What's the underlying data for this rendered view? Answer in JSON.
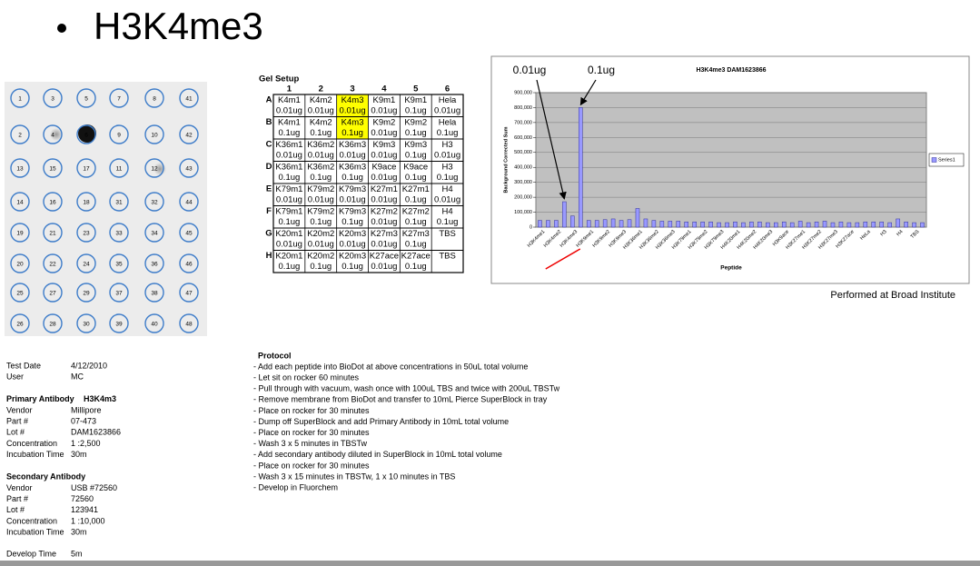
{
  "title": "H3K4me3",
  "blot": {
    "rows": [
      [
        "1",
        "3",
        "5",
        "7",
        "8",
        "41"
      ],
      [
        "2",
        "4",
        "6",
        "9",
        "10",
        "42"
      ],
      [
        "13",
        "15",
        "17",
        "11",
        "12",
        "43"
      ],
      [
        "14",
        "16",
        "18",
        "31",
        "32",
        "44"
      ],
      [
        "19",
        "21",
        "23",
        "33",
        "34",
        "45"
      ],
      [
        "20",
        "22",
        "24",
        "35",
        "36",
        "46"
      ],
      [
        "25",
        "27",
        "29",
        "37",
        "38",
        "47"
      ],
      [
        "26",
        "28",
        "30",
        "39",
        "40",
        "48"
      ]
    ]
  },
  "gel_setup": {
    "title": "Gel Setup",
    "columns": [
      "1",
      "2",
      "3",
      "4",
      "5",
      "6"
    ],
    "highlight_color": "#ffff00",
    "rows": [
      {
        "label": "A",
        "peptides": [
          "K4m1",
          "K4m2",
          "K4m3",
          "K9m1",
          "K9m1",
          "Hela"
        ],
        "amounts": [
          "0.01ug",
          "0.01ug",
          "0.01ug",
          "0.01ug",
          "0.1ug",
          "0.01ug"
        ],
        "highlighted": [
          2
        ]
      },
      {
        "label": "B",
        "peptides": [
          "K4m1",
          "K4m2",
          "K4m3",
          "K9m2",
          "K9m2",
          "Hela"
        ],
        "amounts": [
          "0.1ug",
          "0.1ug",
          "0.1ug",
          "0.01ug",
          "0.1ug",
          "0.1ug"
        ],
        "highlighted": [
          2
        ]
      },
      {
        "label": "C",
        "peptides": [
          "K36m1",
          "K36m2",
          "K36m3",
          "K9m3",
          "K9m3",
          "H3"
        ],
        "amounts": [
          "0.01ug",
          "0.01ug",
          "0.01ug",
          "0.01ug",
          "0.1ug",
          "0.01ug"
        ]
      },
      {
        "label": "D",
        "peptides": [
          "K36m1",
          "K36m2",
          "K36m3",
          "K9ace",
          "K9ace",
          "H3"
        ],
        "amounts": [
          "0.1ug",
          "0.1ug",
          "0.1ug",
          "0.01ug",
          "0.1ug",
          "0.1ug"
        ]
      },
      {
        "label": "E",
        "peptides": [
          "K79m1",
          "K79m2",
          "K79m3",
          "K27m1",
          "K27m1",
          "H4"
        ],
        "amounts": [
          "0.01ug",
          "0.01ug",
          "0.01ug",
          "0.01ug",
          "0.1ug",
          "0.01ug"
        ]
      },
      {
        "label": "F",
        "peptides": [
          "K79m1",
          "K79m2",
          "K79m3",
          "K27m2",
          "K27m2",
          "H4"
        ],
        "amounts": [
          "0.1ug",
          "0.1ug",
          "0.1ug",
          "0.01ug",
          "0.1ug",
          "0.1ug"
        ]
      },
      {
        "label": "G",
        "peptides": [
          "K20m1",
          "K20m2",
          "K20m3",
          "K27m3",
          "K27m3",
          "TBS"
        ],
        "amounts": [
          "0.01ug",
          "0.01ug",
          "0.01ug",
          "0.01ug",
          "0.1ug"
        ]
      },
      {
        "label": "H",
        "peptides": [
          "K20m1",
          "K20m2",
          "K20m3",
          "K27ace",
          "K27ace",
          "TBS"
        ],
        "amounts": [
          "0.1ug",
          "0.1ug",
          "0.1ug",
          "0.01ug",
          "0.1ug"
        ]
      }
    ]
  },
  "chart_data": {
    "type": "bar",
    "title": "H3K4me3 DAM1623866",
    "y_label": "Background Corrected Sum",
    "x_label": "Peptide",
    "categories": [
      "H3K4me1",
      null,
      "H3K4me2",
      null,
      "H3K4me3",
      null,
      "H3K9me1",
      null,
      "H3K9me2",
      null,
      "H3K9me3",
      null,
      "H3K36me1",
      null,
      "H3K36me2",
      null,
      "H3K36me3",
      null,
      "H3K79me1",
      null,
      "H3K79me2",
      null,
      "H3K79me3",
      null,
      "H4K20me1",
      null,
      "H4K20me2",
      null,
      "H4K20me3",
      null,
      "H3K9ace",
      null,
      "H3K27me1",
      null,
      "H3K27me2",
      null,
      "H3K27me3",
      null,
      "H3K27ace",
      null,
      "HeLa",
      null,
      "H3",
      null,
      "H4",
      null,
      "TBS",
      null
    ],
    "series": [
      {
        "name": "Series1",
        "color": "#9999ff",
        "values": [
          45000,
          45000,
          45000,
          170000,
          75000,
          800000,
          45000,
          45000,
          50000,
          55000,
          45000,
          50000,
          125000,
          55000,
          45000,
          40000,
          40000,
          40000,
          35000,
          35000,
          35000,
          35000,
          30000,
          30000,
          35000,
          30000,
          35000,
          35000,
          30000,
          30000,
          35000,
          30000,
          40000,
          30000,
          35000,
          40000,
          30000,
          35000,
          30000,
          30000,
          35000,
          35000,
          35000,
          30000,
          55000,
          35000,
          30000,
          30000
        ]
      }
    ],
    "ylim": [
      0,
      900000
    ],
    "yticks": [
      0,
      {
        "value": 100000,
        "label": "100,000"
      },
      {
        "value": 200000,
        "label": "200,000"
      },
      {
        "value": 300000,
        "label": "300,000"
      },
      {
        "value": 400000,
        "label": "400,000"
      },
      {
        "value": 500000,
        "label": "500,000"
      },
      {
        "value": 600000,
        "label": "600,000"
      },
      {
        "value": 700000,
        "label": "700,000"
      },
      {
        "value": 800000,
        "label": "800,000"
      },
      {
        "value": 900000,
        "label": "900,000"
      }
    ],
    "grid": true,
    "legend": "right",
    "annotations": [
      {
        "text": "0.01ug",
        "points_to": 3
      },
      {
        "text": "0.1ug",
        "points_to": 5
      }
    ]
  },
  "credit": "Performed at Broad Institute",
  "test_info": [
    {
      "label": "Test Date",
      "value": "4/12/2010"
    },
    {
      "label": "User",
      "value": "MC"
    }
  ],
  "primary_antibody": {
    "title": "Primary Antibody",
    "name": "H3K4m3",
    "fields": [
      {
        "label": "Vendor",
        "value": "Millipore"
      },
      {
        "label": "Part #",
        "value": "07-473"
      },
      {
        "label": "Lot #",
        "value": "DAM1623866"
      },
      {
        "label": "Concentration",
        "value": "1 :2,500"
      },
      {
        "label": "Incubation Time",
        "value": "30m"
      }
    ]
  },
  "secondary_antibody": {
    "title": "Secondary Antibody",
    "fields": [
      {
        "label": "Vendor",
        "value": "USB #72560"
      },
      {
        "label": "Part #",
        "value": "72560"
      },
      {
        "label": "Lot #",
        "value": "123941"
      },
      {
        "label": "Concentration",
        "value": "1 :10,000"
      },
      {
        "label": "Incubation Time",
        "value": "30m"
      }
    ]
  },
  "develop_time": {
    "label": "Develop Time",
    "value": "5m"
  },
  "protocol": {
    "title": "Protocol",
    "steps": [
      "- Add each peptide into BioDot at above concentrations in 50uL total volume",
      "- Let sit on rocker 60 minutes",
      "- Pull through with vacuum, wash once with 100uL TBS and twice with 200uL TBSTw",
      "- Remove membrane from BioDot and transfer to 10mL Pierce SuperBlock in tray",
      "- Place on rocker for 30 minutes",
      "- Dump off SuperBlock and add Primary Antibody in 10mL total volume",
      "- Place on rocker for 30 minutes",
      "- Wash 3 x 5 minutes in TBSTw",
      "- Add secondary antibody diluted in SuperBlock in 10mL total volume",
      "- Place on rocker for 30 minutes",
      "- Wash 3 x 15 minutes in TBSTw, 1 x 10 minutes in TBS",
      "- Develop in Fluorchem"
    ]
  }
}
